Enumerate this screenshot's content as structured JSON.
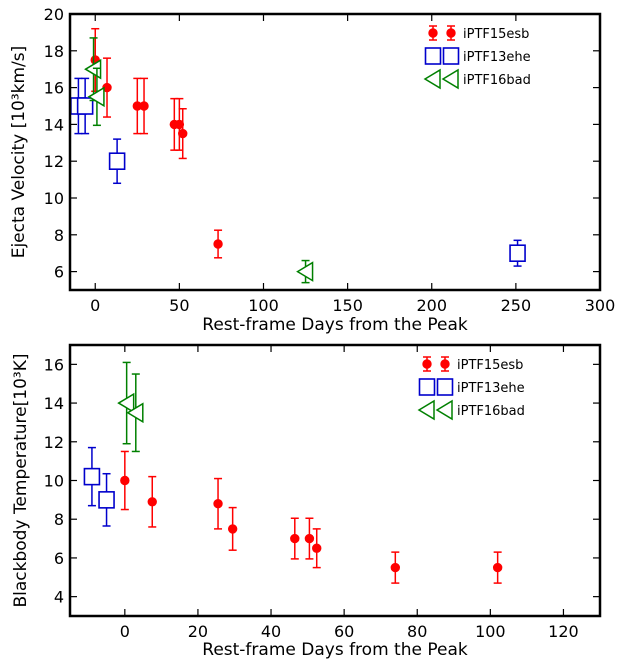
{
  "chart_data": [
    {
      "type": "scatter",
      "xlabel": "Rest-frame Days from the Peak",
      "ylabel": "Ejecta Velocity [10³km/s]",
      "xlim": [
        -15,
        300
      ],
      "ylim": [
        5,
        20
      ],
      "xticks": [
        "0",
        "50",
        "100",
        "150",
        "200",
        "250",
        "300"
      ],
      "yticks": [
        "6",
        "8",
        "10",
        "12",
        "14",
        "16",
        "18",
        "20"
      ],
      "xtick_values": [
        0,
        50,
        100,
        150,
        200,
        250,
        300
      ],
      "ytick_values": [
        6,
        8,
        10,
        12,
        14,
        16,
        18,
        20
      ],
      "legend_position": "top-right",
      "series": [
        {
          "name": "iPTF15esb",
          "color": "#ff0000",
          "marker": "circle",
          "points": [
            {
              "x": 0,
              "y": 17.5,
              "err": 1.7
            },
            {
              "x": 7,
              "y": 16.0,
              "err": 1.6
            },
            {
              "x": 25,
              "y": 15.0,
              "err": 1.5
            },
            {
              "x": 29,
              "y": 15.0,
              "err": 1.5
            },
            {
              "x": 47,
              "y": 14.0,
              "err": 1.4
            },
            {
              "x": 50,
              "y": 14.0,
              "err": 1.4
            },
            {
              "x": 52,
              "y": 13.5,
              "err": 1.35
            },
            {
              "x": 73,
              "y": 7.5,
              "err": 0.75
            }
          ]
        },
        {
          "name": "iPTF13ehe",
          "color": "#0000cc",
          "marker": "square",
          "points": [
            {
              "x": -10,
              "y": 15.0,
              "err": 1.5
            },
            {
              "x": -6,
              "y": 15.0,
              "err": 1.5
            },
            {
              "x": 13,
              "y": 12.0,
              "err": 1.2
            },
            {
              "x": 251,
              "y": 7.0,
              "err": 0.7
            }
          ]
        },
        {
          "name": "iPTF16bad",
          "color": "#008000",
          "marker": "triangle-left",
          "points": [
            {
              "x": -1,
              "y": 17.0,
              "err": 1.7
            },
            {
              "x": 1,
              "y": 15.5,
              "err": 1.55
            },
            {
              "x": 125,
              "y": 6.0,
              "err": 0.6
            }
          ]
        }
      ]
    },
    {
      "type": "scatter",
      "xlabel": "Rest-frame Days from the Peak",
      "ylabel": "Blackbody Temperature[10³K]",
      "xlim": [
        -15,
        130
      ],
      "ylim": [
        3,
        17
      ],
      "xticks": [
        "0",
        "20",
        "40",
        "60",
        "80",
        "100",
        "120"
      ],
      "yticks": [
        "4",
        "6",
        "8",
        "10",
        "12",
        "14",
        "16"
      ],
      "xtick_values": [
        0,
        20,
        40,
        60,
        80,
        100,
        120
      ],
      "ytick_values": [
        4,
        6,
        8,
        10,
        12,
        14,
        16
      ],
      "legend_position": "top-right",
      "series": [
        {
          "name": "iPTF15esb",
          "color": "#ff0000",
          "marker": "circle",
          "points": [
            {
              "x": 0,
              "y": 10.0,
              "err": 1.5
            },
            {
              "x": 7.5,
              "y": 8.9,
              "err": 1.3
            },
            {
              "x": 25.5,
              "y": 8.8,
              "err": 1.3
            },
            {
              "x": 29.5,
              "y": 7.5,
              "err": 1.1
            },
            {
              "x": 46.5,
              "y": 7.0,
              "err": 1.05
            },
            {
              "x": 50.5,
              "y": 7.0,
              "err": 1.05
            },
            {
              "x": 52.5,
              "y": 6.5,
              "err": 1.0
            },
            {
              "x": 74,
              "y": 5.5,
              "err": 0.8
            },
            {
              "x": 102,
              "y": 5.5,
              "err": 0.8
            }
          ]
        },
        {
          "name": "iPTF13ehe",
          "color": "#0000cc",
          "marker": "square",
          "points": [
            {
              "x": -9,
              "y": 10.2,
              "err": 1.5
            },
            {
              "x": -5,
              "y": 9.0,
              "err": 1.35
            }
          ]
        },
        {
          "name": "iPTF16bad",
          "color": "#008000",
          "marker": "triangle-left",
          "points": [
            {
              "x": 0.5,
              "y": 14.0,
              "err": 2.1
            },
            {
              "x": 3,
              "y": 13.5,
              "err": 2.0
            }
          ]
        }
      ]
    }
  ]
}
